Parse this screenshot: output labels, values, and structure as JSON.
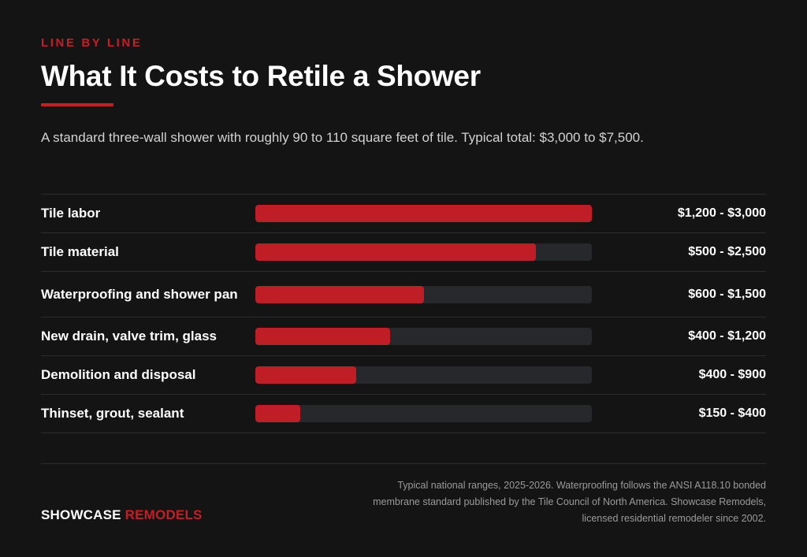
{
  "header": {
    "eyebrow": "LINE BY LINE",
    "title": "What It Costs to Retile a Shower",
    "subtitle": "A standard three-wall shower with roughly 90 to 110 square feet of tile. Typical total: $3,000 to $7,500."
  },
  "colors": {
    "background": "#141414",
    "accent": "#c41e27",
    "bar_fill": "#bf1e27",
    "bar_track": "#26282b"
  },
  "chart_data": {
    "type": "bar",
    "orientation": "horizontal",
    "scale_max": 3000,
    "categories": [
      "Tile labor",
      "Tile material",
      "Waterproofing and shower pan",
      "New drain, valve trim, glass",
      "Demolition and disposal",
      "Thinset, grout, sealant"
    ],
    "values": [
      3000,
      2500,
      1500,
      1200,
      900,
      400
    ],
    "range_labels": [
      "$1,200 - $3,000",
      "$500 - $2,500",
      "$600 - $1,500",
      "$400 - $1,200",
      "$400 - $900",
      "$150 - $400"
    ]
  },
  "footer": {
    "brand_primary": "SHOWCASE",
    "brand_secondary": "REMODELS",
    "note": "Typical national ranges, 2025-2026. Waterproofing follows the ANSI A118.10 bonded membrane standard published by the Tile Council of North America. Showcase Remodels, licensed residential remodeler since 2002."
  }
}
